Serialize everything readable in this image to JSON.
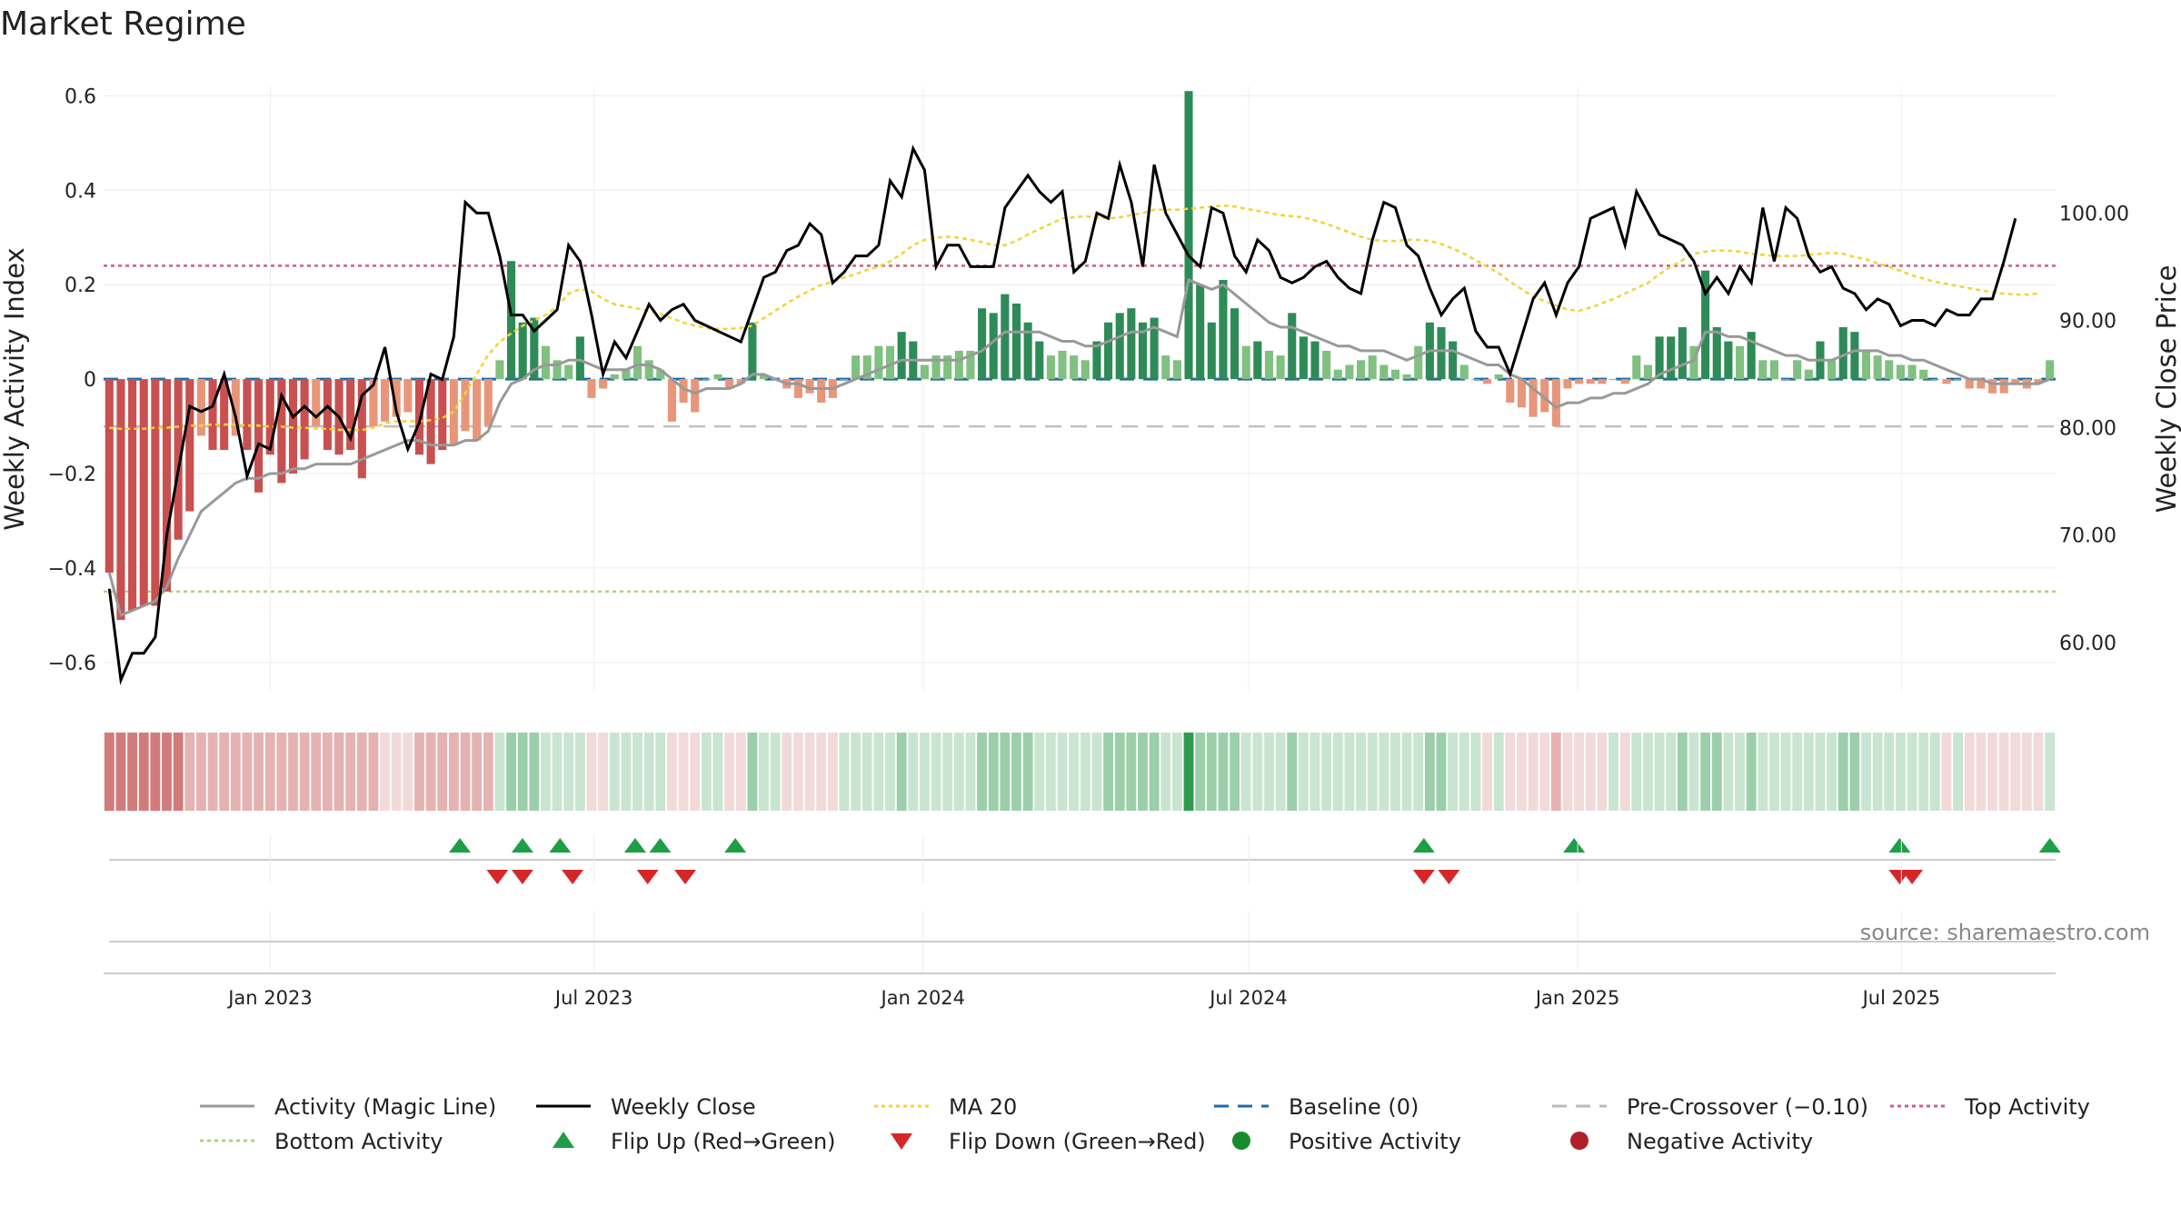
{
  "chart_data": {
    "type": "bar",
    "title": "Market Regime",
    "source": "source: sharemaestro.com",
    "left_axis": {
      "label": "Weekly Activity Index",
      "ylim": [
        -0.66,
        0.62
      ],
      "ticks": [
        0.6,
        0.4,
        0.2,
        0,
        -0.2,
        -0.4,
        -0.6
      ],
      "tick_labels": [
        "0.6",
        "0.4",
        "0.2",
        "0",
        "−0.2",
        "−0.4",
        "−0.6"
      ]
    },
    "right_axis": {
      "label": "Weekly Close Price",
      "ylim": [
        55.5,
        111.8
      ],
      "ticks": [
        100,
        90,
        80,
        70,
        60
      ],
      "tick_labels": [
        "100.00",
        "90.00",
        "80.00",
        "70.00",
        "60.00"
      ]
    },
    "x_axis": {
      "start": "2022-10-03",
      "end": "2025-09-22",
      "ticks": [
        "2023-01-01",
        "2023-07-01",
        "2024-01-01",
        "2024-07-01",
        "2025-01-01",
        "2025-07-01"
      ],
      "tick_labels": [
        "Jan 2023",
        "Jul 2023",
        "Jan 2024",
        "Jul 2024",
        "Jan 2025",
        "Jul 2025"
      ]
    },
    "reference_lines": {
      "baseline": 0,
      "pre_crossover": -0.1,
      "top_activity": 0.24,
      "bottom_activity": -0.45
    },
    "activity_index": [
      -0.41,
      -0.51,
      -0.49,
      -0.48,
      -0.48,
      -0.45,
      -0.34,
      -0.28,
      -0.12,
      -0.15,
      -0.15,
      -0.12,
      -0.15,
      -0.24,
      -0.16,
      -0.22,
      -0.2,
      -0.17,
      -0.1,
      -0.15,
      -0.16,
      -0.15,
      -0.21,
      -0.1,
      -0.09,
      -0.08,
      -0.07,
      -0.16,
      -0.18,
      -0.15,
      -0.14,
      -0.11,
      -0.13,
      -0.1,
      0.04,
      0.25,
      0.12,
      0.13,
      0.07,
      0.04,
      0.03,
      0.09,
      -0.04,
      -0.02,
      0.01,
      0.02,
      0.07,
      0.04,
      0.02,
      -0.09,
      -0.05,
      -0.07,
      0.0,
      0.01,
      -0.02,
      -0.01,
      0.12,
      0.01,
      0.0,
      -0.02,
      -0.04,
      -0.03,
      -0.05,
      -0.04,
      0.0,
      0.05,
      0.05,
      0.07,
      0.07,
      0.1,
      0.08,
      0.03,
      0.05,
      0.05,
      0.06,
      0.06,
      0.15,
      0.14,
      0.18,
      0.16,
      0.12,
      0.08,
      0.05,
      0.06,
      0.05,
      0.04,
      0.08,
      0.12,
      0.14,
      0.15,
      0.12,
      0.13,
      0.05,
      0.04,
      0.61,
      0.2,
      0.12,
      0.21,
      0.15,
      0.07,
      0.08,
      0.06,
      0.05,
      0.14,
      0.09,
      0.08,
      0.06,
      0.02,
      0.03,
      0.04,
      0.05,
      0.03,
      0.02,
      0.01,
      0.07,
      0.12,
      0.11,
      0.08,
      0.03,
      0.0,
      -0.01,
      0.01,
      -0.05,
      -0.06,
      -0.08,
      -0.07,
      -0.1,
      -0.02,
      -0.01,
      -0.01,
      -0.01,
      0.0,
      -0.01,
      0.05,
      0.03,
      0.09,
      0.09,
      0.11,
      0.07,
      0.23,
      0.11,
      0.08,
      0.07,
      0.1,
      0.04,
      0.04,
      0.0,
      0.04,
      0.02,
      0.08,
      0.04,
      0.11,
      0.1,
      0.06,
      0.05,
      0.04,
      0.03,
      0.03,
      0.02,
      0.0,
      -0.01,
      0.0,
      -0.02,
      -0.02,
      -0.03,
      -0.03,
      -0.01,
      -0.02,
      -0.01,
      0.04
    ],
    "magic_line": [
      -0.41,
      -0.5,
      -0.49,
      -0.48,
      -0.47,
      -0.44,
      -0.38,
      -0.33,
      -0.28,
      -0.26,
      -0.24,
      -0.22,
      -0.21,
      -0.21,
      -0.2,
      -0.2,
      -0.19,
      -0.19,
      -0.18,
      -0.18,
      -0.18,
      -0.18,
      -0.17,
      -0.16,
      -0.15,
      -0.14,
      -0.13,
      -0.13,
      -0.14,
      -0.14,
      -0.14,
      -0.13,
      -0.13,
      -0.11,
      -0.05,
      -0.01,
      0.0,
      0.02,
      0.03,
      0.03,
      0.04,
      0.04,
      0.03,
      0.02,
      0.02,
      0.02,
      0.03,
      0.03,
      0.02,
      0.0,
      -0.02,
      -0.03,
      -0.02,
      -0.02,
      -0.02,
      -0.01,
      0.01,
      0.01,
      0.0,
      -0.01,
      -0.01,
      -0.02,
      -0.02,
      -0.02,
      -0.01,
      0.0,
      0.01,
      0.02,
      0.03,
      0.04,
      0.04,
      0.04,
      0.04,
      0.04,
      0.04,
      0.05,
      0.06,
      0.08,
      0.1,
      0.1,
      0.1,
      0.1,
      0.09,
      0.08,
      0.08,
      0.07,
      0.07,
      0.08,
      0.09,
      0.1,
      0.1,
      0.11,
      0.1,
      0.09,
      0.21,
      0.2,
      0.19,
      0.2,
      0.18,
      0.16,
      0.14,
      0.12,
      0.11,
      0.11,
      0.1,
      0.09,
      0.08,
      0.07,
      0.07,
      0.06,
      0.06,
      0.06,
      0.05,
      0.04,
      0.05,
      0.06,
      0.06,
      0.06,
      0.05,
      0.04,
      0.03,
      0.03,
      0.01,
      0.0,
      -0.02,
      -0.04,
      -0.06,
      -0.05,
      -0.05,
      -0.04,
      -0.04,
      -0.03,
      -0.03,
      -0.02,
      -0.01,
      0.01,
      0.02,
      0.03,
      0.04,
      0.1,
      0.1,
      0.09,
      0.09,
      0.08,
      0.07,
      0.06,
      0.05,
      0.05,
      0.04,
      0.04,
      0.04,
      0.05,
      0.06,
      0.06,
      0.06,
      0.05,
      0.05,
      0.04,
      0.04,
      0.03,
      0.02,
      0.01,
      0.0,
      0.0,
      -0.01,
      -0.01,
      -0.01,
      -0.01,
      -0.01,
      0.0
    ],
    "weekly_close": [
      65.0,
      56.5,
      59.0,
      59.0,
      60.5,
      70.0,
      76.0,
      82.0,
      81.5,
      82.0,
      85.0,
      81.0,
      75.5,
      78.5,
      78.0,
      83.0,
      81.0,
      82.0,
      81.0,
      82.0,
      81.0,
      79.0,
      83.0,
      84.0,
      87.5,
      81.5,
      78.0,
      80.5,
      85.0,
      84.5,
      88.5,
      101.0,
      100.0,
      100.0,
      96.0,
      90.5,
      90.5,
      89.0,
      90.0,
      91.0,
      97.0,
      95.5,
      90.5,
      85.0,
      88.0,
      86.5,
      89.0,
      91.5,
      90.0,
      91.0,
      91.5,
      90.0,
      89.5,
      89.0,
      88.5,
      88.0,
      91.0,
      94.0,
      94.5,
      96.5,
      97.0,
      99.0,
      98.0,
      93.5,
      94.5,
      96.0,
      96.0,
      97.0,
      103.0,
      101.5,
      106.0,
      104.0,
      95.0,
      97.0,
      97.0,
      95.0,
      95.0,
      95.0,
      100.5,
      102.0,
      103.5,
      102.0,
      101.0,
      102.0,
      94.5,
      95.5,
      100.0,
      99.5,
      104.5,
      101.0,
      95.0,
      104.5,
      100.0,
      98.0,
      96.0,
      95.0,
      100.5,
      100.0,
      96.0,
      94.5,
      97.5,
      96.5,
      94.0,
      93.5,
      94.0,
      95.0,
      95.5,
      94.0,
      93.0,
      92.5,
      97.5,
      101.0,
      100.5,
      97.0,
      96.0,
      93.0,
      90.5,
      92.0,
      93.0,
      89.0,
      87.5,
      87.5,
      85.0,
      88.5,
      92.0,
      93.5,
      90.5,
      93.5,
      95.0,
      99.5,
      100.0,
      100.5,
      97.0,
      102.0,
      100.0,
      98.0,
      97.5,
      97.0,
      95.5,
      92.5,
      94.0,
      92.5,
      95.0,
      93.5,
      100.5,
      95.5,
      100.5,
      99.5,
      96.0,
      94.5,
      95.0,
      93.0,
      92.5,
      91.0,
      92.0,
      91.5,
      89.5,
      90.0,
      90.0,
      89.5,
      91.0,
      90.5,
      90.5,
      92.0,
      92.0,
      95.5,
      99.5
    ],
    "ma20": [
      80.0,
      79.9,
      79.9,
      79.9,
      80.0,
      80.0,
      80.1,
      80.2,
      80.2,
      80.3,
      80.3,
      80.3,
      80.2,
      80.2,
      80.1,
      80.1,
      80.0,
      80.0,
      79.9,
      79.9,
      79.8,
      79.8,
      79.8,
      80.0,
      80.4,
      80.6,
      80.6,
      80.6,
      80.7,
      80.9,
      81.5,
      83.2,
      85.0,
      86.8,
      88.0,
      88.8,
      89.5,
      90.0,
      90.5,
      91.3,
      92.5,
      92.9,
      92.7,
      92.0,
      91.5,
      91.3,
      91.1,
      90.9,
      90.6,
      90.2,
      89.8,
      89.5,
      89.3,
      89.2,
      89.2,
      89.3,
      89.5,
      90.2,
      90.9,
      91.6,
      92.2,
      92.8,
      93.3,
      93.6,
      94.0,
      94.3,
      94.7,
      95.0,
      95.5,
      96.2,
      97.0,
      97.5,
      97.7,
      97.8,
      97.7,
      97.5,
      97.3,
      97.0,
      97.0,
      97.4,
      98.0,
      98.5,
      99.0,
      99.5,
      99.6,
      99.7,
      99.6,
      99.5,
      99.6,
      99.8,
      100.0,
      100.3,
      100.3,
      100.3,
      100.4,
      100.5,
      100.6,
      100.7,
      100.6,
      100.4,
      100.2,
      100.0,
      99.8,
      99.7,
      99.6,
      99.3,
      99.0,
      98.6,
      98.2,
      97.8,
      97.5,
      97.4,
      97.4,
      97.5,
      97.5,
      97.4,
      97.1,
      96.7,
      96.2,
      95.6,
      95.0,
      94.4,
      93.6,
      92.9,
      92.2,
      91.8,
      91.4,
      91.0,
      90.9,
      91.2,
      91.6,
      92.0,
      92.5,
      93.0,
      93.5,
      94.3,
      95.0,
      95.6,
      96.2,
      96.4,
      96.5,
      96.5,
      96.4,
      96.2,
      96.1,
      96.0,
      96.0,
      96.0,
      96.1,
      96.2,
      96.3,
      96.2,
      95.9,
      95.7,
      95.3,
      95.0,
      94.6,
      94.2,
      93.9,
      93.6,
      93.4,
      93.2,
      93.0,
      92.8,
      92.6,
      92.5,
      92.4,
      92.4,
      92.5
    ],
    "flip_up": [
      "2023-04-17",
      "2023-05-22",
      "2023-06-12",
      "2023-07-24",
      "2023-08-07",
      "2023-09-18",
      "2024-10-07",
      "2024-12-30",
      "2025-06-30",
      "2025-09-22"
    ],
    "flip_down": [
      "2023-05-08",
      "2023-05-22",
      "2023-06-19",
      "2023-07-31",
      "2023-08-21",
      "2024-10-07",
      "2024-10-21",
      "2025-06-30",
      "2025-07-07"
    ],
    "legend": [
      {
        "label": "Activity (Magic Line)",
        "kind": "line",
        "color": "#999999"
      },
      {
        "label": "Weekly Close",
        "kind": "line",
        "color": "#000000"
      },
      {
        "label": "MA 20",
        "kind": "dotted",
        "color": "#f0d43a"
      },
      {
        "label": "Baseline (0)",
        "kind": "dashed",
        "color": "#1f6aa5"
      },
      {
        "label": "Pre-Crossover (−0.10)",
        "kind": "dashed",
        "color": "#bbbbbb"
      },
      {
        "label": "Top Activity",
        "kind": "dotted",
        "color": "#d0607a"
      },
      {
        "label": "Bottom Activity",
        "kind": "dotted",
        "color": "#a8d67a"
      },
      {
        "label": "Flip Up (Red→Green)",
        "kind": "tri-up",
        "color": "#1e9e46"
      },
      {
        "label": "Flip Down (Green→Red)",
        "kind": "tri-down",
        "color": "#d62728"
      },
      {
        "label": "Positive Activity",
        "kind": "dot",
        "color": "#1a8a2e"
      },
      {
        "label": "Negative Activity",
        "kind": "dot",
        "color": "#b02028"
      }
    ],
    "colors": {
      "pos_strong": "#2e8b57",
      "pos_light": "#80c080",
      "neg_strong": "#c85050",
      "neg_light": "#e8967a"
    }
  }
}
